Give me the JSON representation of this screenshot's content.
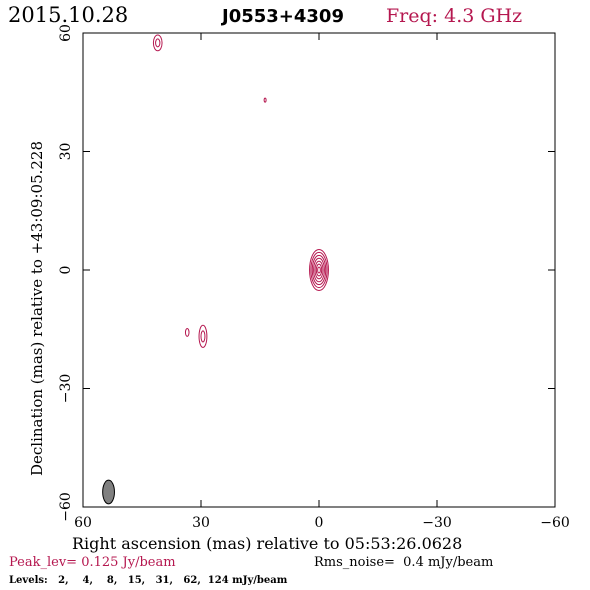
{
  "header": {
    "date": "2015.10.28",
    "source": "J0553+4309",
    "freq": "Freq: 4.3 GHz"
  },
  "footer": {
    "peak": "Peak_lev=  0.125 Jy/beam",
    "rms": "Rms_noise=  0.4 mJy/beam",
    "levels": "Levels:   2,    4,    8,   15,   31,   62,  124 mJy/beam"
  },
  "colors": {
    "accent": "#b5174f",
    "axis": "#000000",
    "beam_fill": "#808080"
  },
  "chart_data": {
    "type": "contour",
    "xlabel": "Right ascension (mas) relative to 05:53:26.0628",
    "ylabel": "Declination (mas) relative to +43:09:05.228",
    "xlim": [
      60,
      -60
    ],
    "ylim": [
      -60,
      60
    ],
    "x_ticks": [
      60,
      30,
      0,
      -30,
      -60
    ],
    "y_ticks": [
      -60,
      -30,
      0,
      30,
      60
    ],
    "x_tick_labels": [
      "60",
      "30",
      "0",
      "−30",
      "−60"
    ],
    "y_tick_labels": [
      "−60",
      "−30",
      "0",
      "30",
      "60"
    ],
    "contour_levels_mJy": [
      2,
      4,
      8,
      15,
      31,
      62,
      124
    ],
    "peak_Jy_per_beam": 0.125,
    "rms_mJy_per_beam": 0.4,
    "components": [
      {
        "name": "core",
        "x": 0.0,
        "y": 0.0,
        "n_contours": 7,
        "max_hw": 2.4,
        "max_hh": 5.2
      },
      {
        "name": "jet-knot-1",
        "x": 29.5,
        "y": -16.8,
        "n_contours": 2,
        "max_hw": 1.0,
        "max_hh": 2.8
      },
      {
        "name": "jet-knot-2",
        "x": 33.5,
        "y": -15.8,
        "n_contours": 1,
        "max_hw": 0.45,
        "max_hh": 1.0
      },
      {
        "name": "feature-north-1",
        "x": 41.0,
        "y": 57.5,
        "n_contours": 2,
        "max_hw": 1.1,
        "max_hh": 2.0
      },
      {
        "name": "feature-north-2",
        "x": 13.7,
        "y": 43.0,
        "n_contours": 1,
        "max_hw": 0.25,
        "max_hh": 0.5
      }
    ],
    "beam": {
      "x": 53.5,
      "y": -56.2,
      "major_mas": 6.0,
      "minor_mas": 3.0,
      "pa_deg": 0
    }
  }
}
